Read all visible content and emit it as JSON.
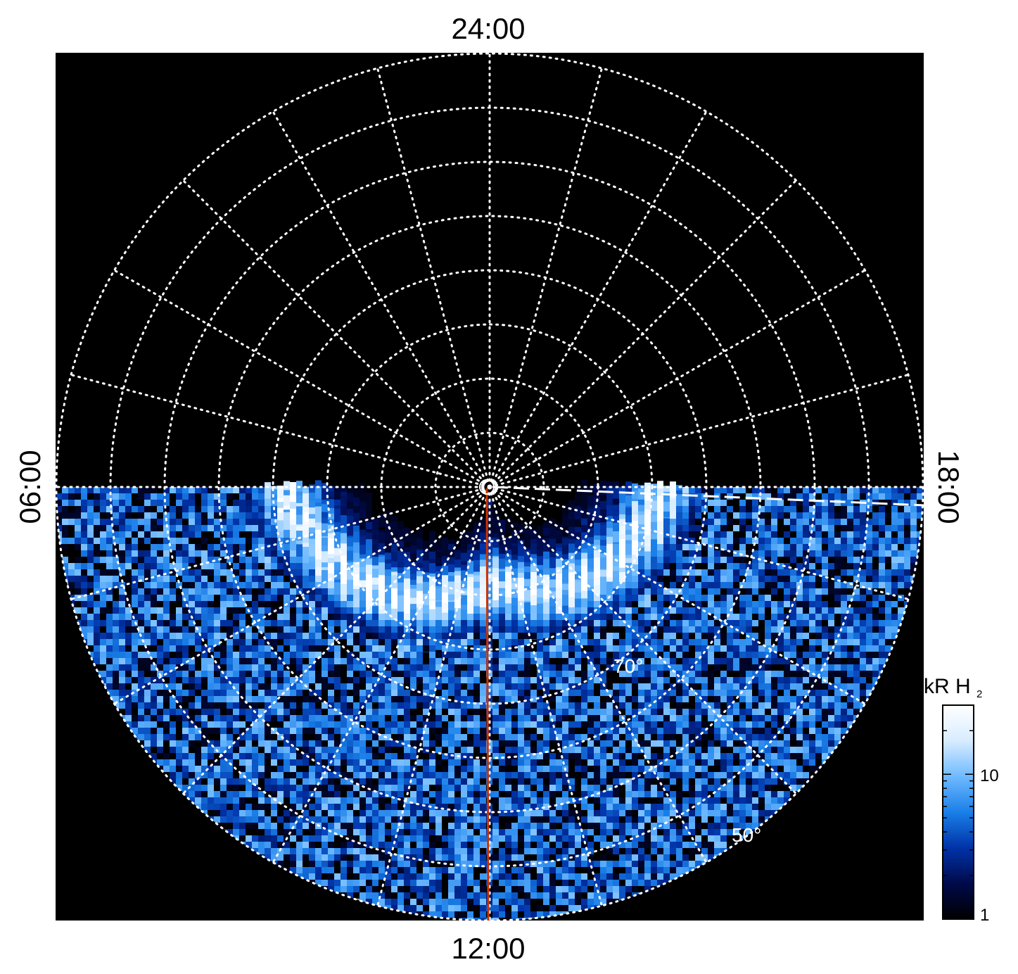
{
  "chart_data": {
    "type": "heatmap",
    "projection": "polar",
    "title": "",
    "local_time_labels": {
      "top": "24:00",
      "left": "06:00",
      "right": "18:00",
      "bottom": "12:00"
    },
    "latitude_labels": [
      "70°",
      "50°"
    ],
    "latitude_rings_deg": [
      85,
      80,
      75,
      70,
      65,
      60,
      55,
      50
    ],
    "meridian_spacing_hours": 1,
    "grid": true,
    "colorbar": {
      "label_main": "kR H",
      "label_sub": "2",
      "scale": "log",
      "range": [
        1,
        30
      ],
      "tick_labels": [
        "1",
        "10"
      ],
      "colors": [
        "#000000",
        "#000a4a",
        "#0033a8",
        "#1a7fe8",
        "#6fbaff",
        "#d8ecff",
        "#ffffff"
      ]
    },
    "auroral_oval": {
      "band_center_colat_deg_at_dawn": 19,
      "band_center_colat_deg_at_noon": 9,
      "band_center_colat_deg_at_dusk": 16
    },
    "overlays": {
      "noon_meridian_line_color": "#cc3300",
      "dusk_dashed_line_color": "#ffffff"
    }
  }
}
